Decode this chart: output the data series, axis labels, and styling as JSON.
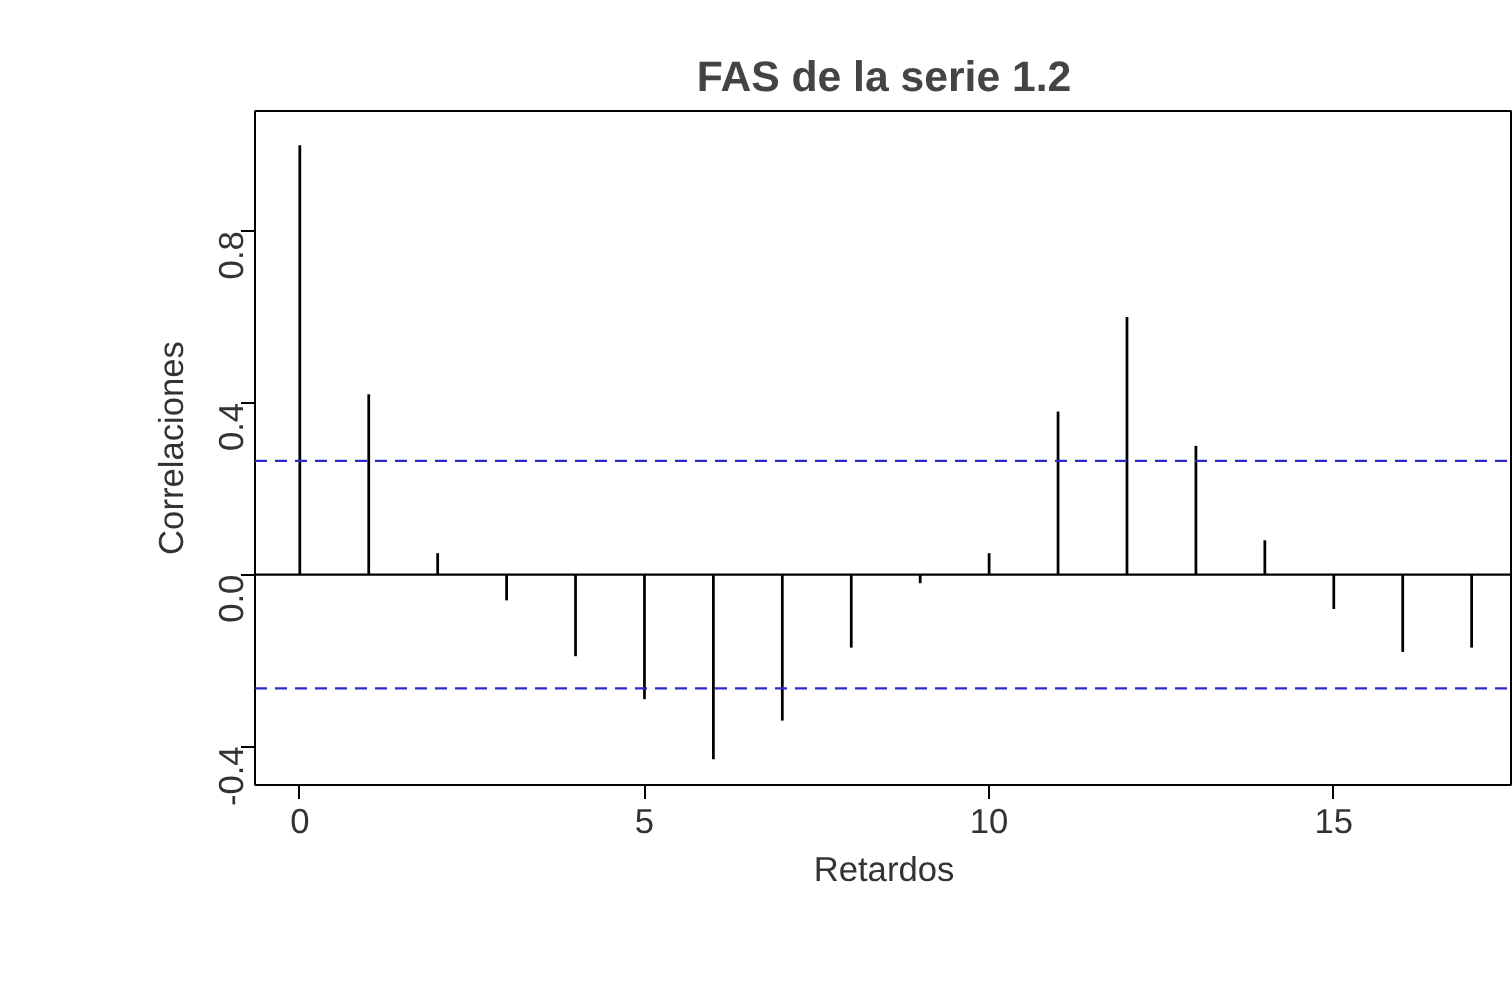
{
  "chart_data": {
    "type": "bar",
    "title": "FAS de la serie 1.2",
    "xlabel": "Retardos",
    "ylabel": "Correlaciones",
    "x": [
      0,
      1,
      2,
      3,
      4,
      5,
      6,
      7,
      8,
      9,
      10,
      11,
      12,
      13,
      14,
      15,
      16,
      17
    ],
    "series": [
      {
        "color": "#000000",
        "values": [
          1.0,
          0.42,
          0.05,
          -0.06,
          -0.19,
          -0.29,
          -0.43,
          -0.34,
          -0.17,
          -0.02,
          0.05,
          0.38,
          0.6,
          0.3,
          0.08,
          -0.08,
          -0.18,
          -0.17
        ]
      }
    ],
    "xlim": [
      -0.65,
      17.6
    ],
    "ylim": [
      -0.49,
      1.08
    ],
    "xticks": [
      0,
      5,
      10,
      15
    ],
    "yticks": [
      {
        "value": -0.4,
        "label": "-0.4"
      },
      {
        "value": 0,
        "label": "0.0"
      },
      {
        "value": 0.4,
        "label": "0.4"
      },
      {
        "value": 0.8,
        "label": "0.8"
      }
    ],
    "ref_lines": [
      {
        "axis": "y",
        "value": 0.265,
        "color": "#2b2bc8",
        "line_style": "dashed"
      },
      {
        "axis": "y",
        "value": -0.265,
        "color": "#2b2bc8",
        "line_style": "dashed"
      },
      {
        "axis": "y",
        "value": 0,
        "color": "#000000",
        "line_style": "solid"
      }
    ],
    "grid": false
  }
}
